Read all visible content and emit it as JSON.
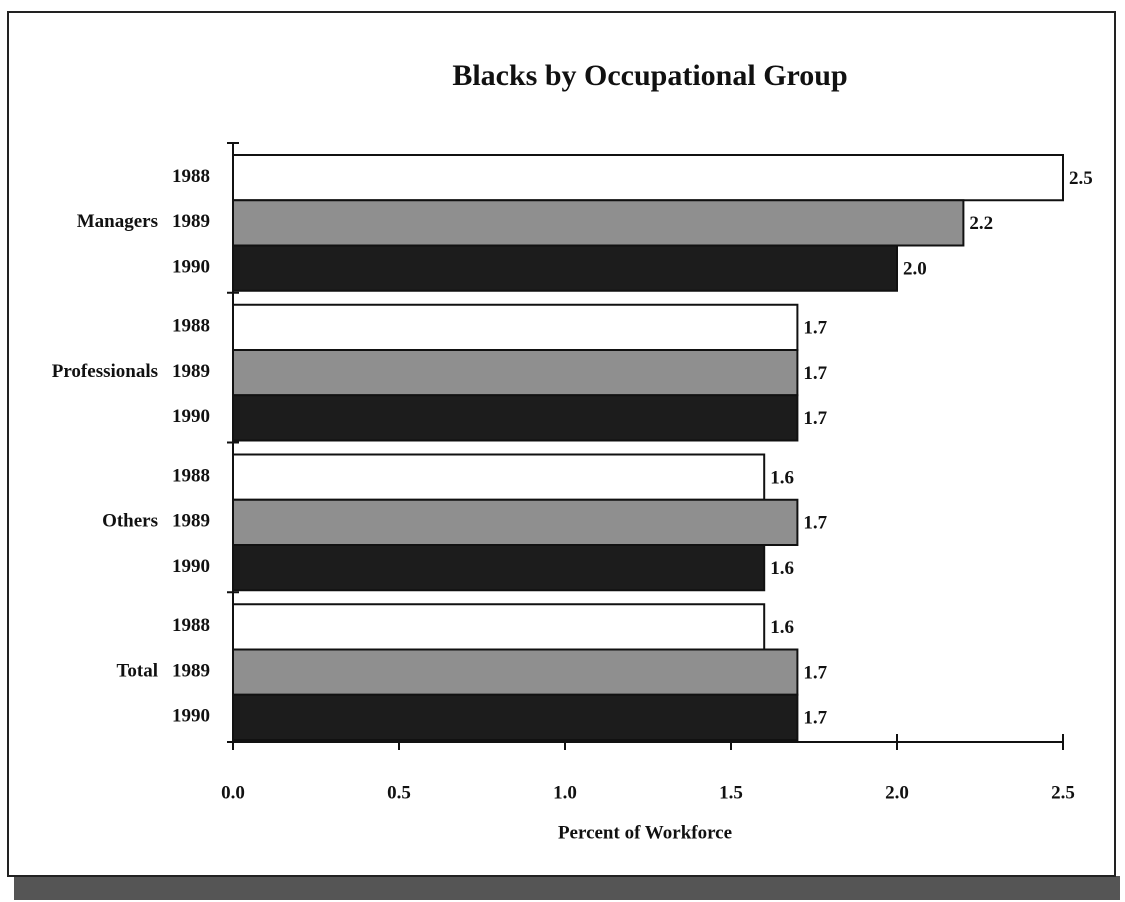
{
  "chart_data": {
    "type": "hbar",
    "title": "Blacks by Occupational Group",
    "xlabel": "Percent of Workforce",
    "categories": [
      "Managers",
      "Professionals",
      "Others",
      "Total"
    ],
    "series": [
      {
        "name": "1988",
        "color": "#ffffff",
        "values": [
          2.5,
          1.7,
          1.6,
          1.6
        ],
        "value_labels": [
          "2.5",
          "1.7",
          "1.6",
          "1.6"
        ]
      },
      {
        "name": "1989",
        "color": "#8f8f8f",
        "values": [
          2.2,
          1.7,
          1.7,
          1.7
        ],
        "value_labels": [
          "2.2",
          "1.7",
          "1.7",
          "1.7"
        ]
      },
      {
        "name": "1990",
        "color": "#1c1c1c",
        "values": [
          2.0,
          1.7,
          1.6,
          1.7
        ],
        "value_labels": [
          "2.0",
          "1.7",
          "1.6",
          "1.7"
        ]
      }
    ],
    "xlim": [
      0,
      2.5
    ],
    "xticks": [
      {
        "value": 0,
        "label": "0.0"
      },
      0.5,
      {
        "value": 1,
        "label": "1.0"
      },
      1.5,
      {
        "value": 2,
        "label": "2.0"
      },
      2.5
    ]
  }
}
